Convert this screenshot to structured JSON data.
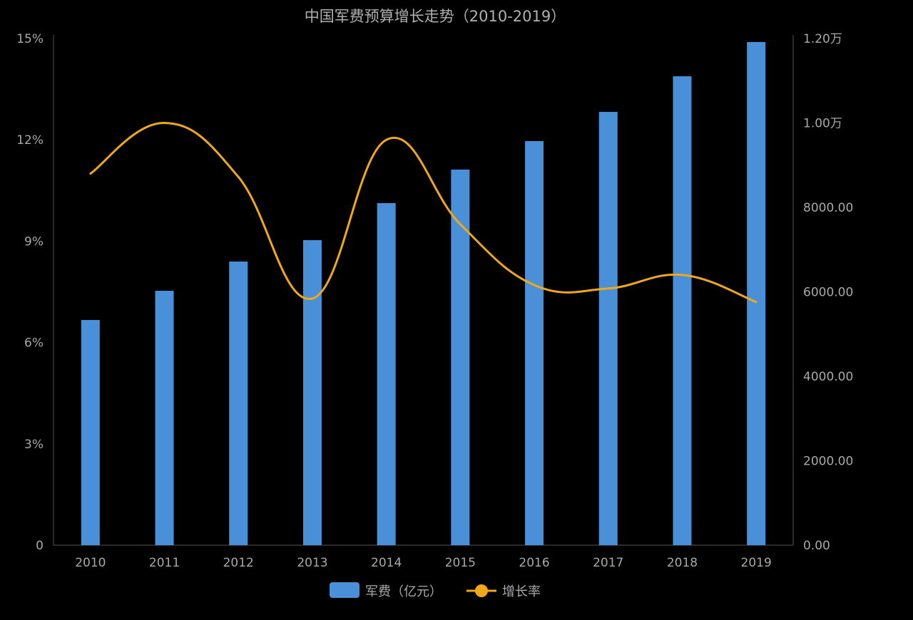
{
  "chart_data": {
    "type": "bar+line",
    "title": "中国军费预算增长走势（2010-2019）",
    "categories": [
      "2010",
      "2011",
      "2012",
      "2013",
      "2014",
      "2015",
      "2016",
      "2017",
      "2018",
      "2019"
    ],
    "series": [
      {
        "name": "军费（亿元）",
        "type": "bar",
        "axis": "right",
        "values": [
          5333,
          6025,
          6717,
          7224,
          8101,
          8895,
          9570,
          10262,
          11105,
          11916
        ]
      },
      {
        "name": "增长率",
        "type": "line",
        "smooth": true,
        "axis": "left",
        "values": [
          11.0,
          12.5,
          10.9,
          7.3,
          12.0,
          9.5,
          7.7,
          7.6,
          8.0,
          7.2
        ]
      }
    ],
    "left_axis": {
      "min": 0,
      "max": 15,
      "ticks": [
        "0",
        "3%",
        "6%",
        "9%",
        "12%",
        "15%"
      ]
    },
    "right_axis": {
      "min": 0,
      "max": 12000,
      "ticks": [
        "0.00",
        "2000.00",
        "4000.00",
        "6000.00",
        "8000.00",
        "1.00万",
        "1.20万"
      ]
    },
    "legend_position": "bottom",
    "grid": false,
    "colors": {
      "bar": "#4a90d9",
      "line": "#f0a818",
      "background": "#000000",
      "text": "#a8a8a8"
    }
  }
}
